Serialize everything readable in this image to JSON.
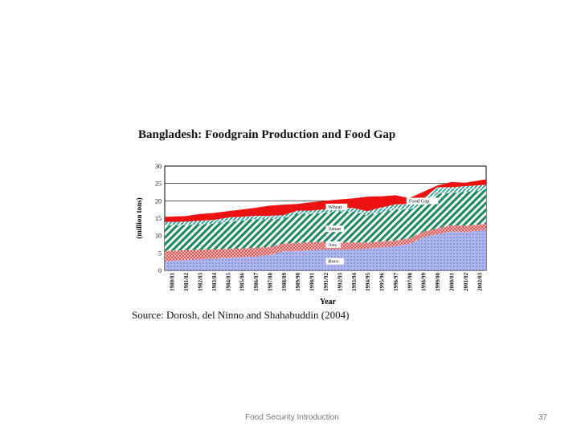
{
  "slide": {
    "footer_title": "Food Security Introduction",
    "page_number": "37",
    "source": "Source: Dorosh, del Ninno and Shahabuddin (2004)"
  },
  "chart_data": {
    "type": "area",
    "title": "Bangladesh: Foodgrain Production and Food  Gap",
    "xlabel": "Year",
    "ylabel": "(million tons)",
    "ylim": [
      0,
      30
    ],
    "yticks": [
      0,
      5,
      10,
      15,
      20,
      25,
      30
    ],
    "grid": true,
    "categories": [
      "1980/81",
      "1981/82",
      "1982/83",
      "1983/84",
      "1984/85",
      "1985/86",
      "1986/87",
      "1987/88",
      "1988/89",
      "1989/90",
      "1990/91",
      "1991/92",
      "1992/93",
      "1993/94",
      "1994/95",
      "1995/96",
      "1996/97",
      "1997/98",
      "1998/99",
      "1999/00",
      "2000/01",
      "2001/02",
      "2002/03"
    ],
    "stacked": true,
    "series": [
      {
        "name": "Boro",
        "color": "#9fa8e8",
        "values": [
          2.6,
          3.0,
          3.2,
          3.4,
          3.6,
          3.8,
          4.0,
          4.4,
          5.5,
          5.6,
          5.8,
          6.0,
          5.9,
          6.0,
          6.2,
          6.6,
          7.0,
          7.6,
          9.5,
          10.4,
          11.2,
          11.0,
          11.6
        ]
      },
      {
        "name": "Aus",
        "color": "#e04040",
        "values": [
          3.0,
          2.8,
          2.7,
          2.6,
          2.6,
          2.5,
          2.5,
          2.3,
          2.2,
          2.3,
          2.3,
          2.2,
          2.1,
          2.0,
          1.8,
          1.7,
          1.6,
          1.6,
          1.6,
          1.7,
          1.8,
          1.8,
          1.8
        ]
      },
      {
        "name": "Aman",
        "color": "#1a8a5a",
        "values": [
          7.4,
          7.2,
          7.4,
          7.4,
          7.8,
          8.0,
          8.2,
          8.0,
          7.2,
          8.4,
          8.1,
          8.4,
          9.0,
          8.9,
          7.8,
          8.4,
          8.9,
          8.3,
          7.8,
          9.9,
          9.2,
          9.8,
          9.7
        ]
      },
      {
        "name": "Wheat",
        "color": "#2fa7a0",
        "values": [
          0.9,
          1.0,
          1.0,
          1.1,
          1.2,
          1.1,
          1.0,
          1.0,
          1.0,
          0.9,
          1.0,
          1.0,
          1.0,
          1.0,
          1.2,
          1.4,
          1.5,
          1.6,
          1.8,
          1.9,
          1.7,
          1.6,
          1.5
        ]
      },
      {
        "name": "Food Gap",
        "color": "#ee1111",
        "values": [
          1.5,
          1.6,
          1.9,
          2.0,
          1.8,
          2.1,
          2.3,
          2.9,
          3.0,
          1.9,
          2.4,
          2.4,
          2.4,
          2.8,
          4.2,
          3.2,
          2.6,
          1.7,
          1.9,
          0.5,
          1.5,
          1.0,
          1.6
        ]
      }
    ],
    "annotations": [
      "Food Gap",
      "Wheat",
      "Aman",
      "Aus",
      "Boro"
    ]
  }
}
